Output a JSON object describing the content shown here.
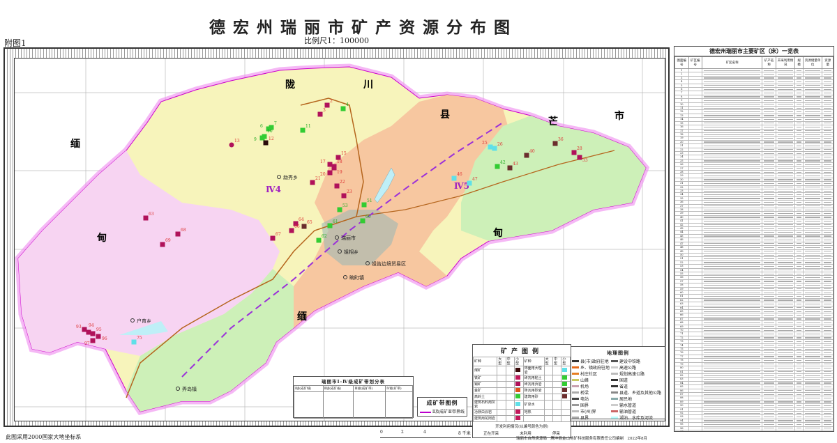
{
  "title": "德宏州瑞丽市矿产资源分布图",
  "scale": "比例尺1：100000",
  "annex": "附图1",
  "footer": {
    "coordinate_system": "此图采用2000国家大地坐标系",
    "producer": "瑞丽市自然资源局　腾冲县金山地矿科技服务有限责任公司编制　2022年8月",
    "scalebar_ticks": [
      "0",
      "2",
      "4",
      "8 千米"
    ]
  },
  "map": {
    "colors": {
      "belt_iv4": "#f7f4bb",
      "west": "#f7d4f2",
      "belt_iv5": "#f7c7a0",
      "east": "#cdf0b8",
      "border_glow": "#ee88ee",
      "urban": "#9fb8b4",
      "water": "#bfeff7",
      "road": "#b5651d",
      "belt_line": "#9b30d9"
    },
    "border_labels": [
      "陇",
      "川",
      "县",
      "芒",
      "市",
      "缅",
      "甸",
      "缅",
      "甸"
    ],
    "place_labels": [
      "勐秀乡",
      "户育乡",
      "瑞丽市",
      "姐相乡",
      "姐告边境贸易区",
      "畹町镇",
      "弄岛镇"
    ],
    "belt_labels": [
      "Ⅳ4",
      "Ⅳ5"
    ],
    "mines": [
      {
        "no": "2",
        "type": "dark-red"
      },
      {
        "no": "3",
        "type": "dark-red"
      },
      {
        "no": "4",
        "type": "green"
      },
      {
        "no": "6",
        "type": "green"
      },
      {
        "no": "7",
        "type": "green"
      },
      {
        "no": "9",
        "type": "green"
      },
      {
        "no": "10",
        "type": "green"
      },
      {
        "no": "11",
        "type": "green"
      },
      {
        "no": "12",
        "type": "black"
      },
      {
        "no": "13",
        "type": "magenta-circle"
      },
      {
        "no": "15",
        "type": "dark-red"
      },
      {
        "no": "17",
        "type": "dark-red"
      },
      {
        "no": "18",
        "type": "dark-red"
      },
      {
        "no": "19",
        "type": "dark-red"
      },
      {
        "no": "20",
        "type": "dark-red"
      },
      {
        "no": "21",
        "type": "dark-red"
      },
      {
        "no": "22",
        "type": "dark-red"
      },
      {
        "no": "23",
        "type": "dark-red"
      },
      {
        "no": "25",
        "type": "cyan"
      },
      {
        "no": "26",
        "type": "cyan"
      },
      {
        "no": "28",
        "type": "dark-red"
      },
      {
        "no": "33",
        "type": "dark-red"
      },
      {
        "no": "36",
        "type": "brown"
      },
      {
        "no": "40",
        "type": "brown"
      },
      {
        "no": "42",
        "type": "green"
      },
      {
        "no": "43",
        "type": "brown"
      },
      {
        "no": "46",
        "type": "cyan"
      },
      {
        "no": "47",
        "type": "cyan"
      },
      {
        "no": "51",
        "type": "green"
      },
      {
        "no": "53",
        "type": "green"
      },
      {
        "no": "60",
        "type": "green"
      },
      {
        "no": "61",
        "type": "green"
      },
      {
        "no": "62",
        "type": "green"
      },
      {
        "no": "63",
        "type": "dark-red"
      },
      {
        "no": "64",
        "type": "dark-red"
      },
      {
        "no": "65",
        "type": "brown"
      },
      {
        "no": "66",
        "type": "dark-red"
      },
      {
        "no": "67",
        "type": "dark-red"
      },
      {
        "no": "68",
        "type": "dark-red"
      },
      {
        "no": "69",
        "type": "dark-red"
      },
      {
        "no": "75",
        "type": "cyan"
      },
      {
        "no": "93",
        "type": "dark-red"
      },
      {
        "no": "94",
        "type": "dark-red"
      },
      {
        "no": "95",
        "type": "dark-red"
      },
      {
        "no": "96",
        "type": "dark-red"
      },
      {
        "no": "97",
        "type": "dark-red"
      }
    ]
  },
  "mineral_legend": {
    "title": "矿产图例",
    "headers": [
      "矿种",
      "大型",
      "中型",
      "小型",
      "矿种",
      "大型",
      "中型",
      "小型"
    ],
    "rows": [
      {
        "left": "煤矿",
        "lc": "#3a0a0a",
        "right": "饰面用大理岩",
        "rc": "#5fe0e8"
      },
      {
        "left": "铁矿",
        "lc": "#c2185b",
        "right": "砖瓦用粘土",
        "rc": "#33cc33"
      },
      {
        "left": "锡矿",
        "lc": "#b0125a",
        "right": "砖瓦用页岩",
        "rc": "#33cc33"
      },
      {
        "left": "金矿",
        "lc": "#e0541a",
        "right": "砖瓦用砂岩",
        "rc": "#6b2d2d"
      },
      {
        "left": "高岭土",
        "lc": "#33cc33",
        "right": "建筑用砂",
        "rc": "#6b2d2d"
      },
      {
        "left": "建筑石料用灰岩",
        "lc": "#5fe0e8",
        "right": "矿泉水",
        "rc": ""
      },
      {
        "left": "冶镁白云岩",
        "lc": "#c2185b",
        "right": "地热",
        "rc": ""
      },
      {
        "left": "建筑用花岗岩",
        "lc": "#c2185b",
        "right": "",
        "rc": ""
      }
    ],
    "status_title": "开发利用情况(以编号颜色为例)",
    "status": [
      "正在开采",
      "未利用",
      "停采"
    ]
  },
  "geo_legend": {
    "title": "地理图例",
    "items": [
      "县(市)政府驻地",
      "建设中铁路",
      "乡、镇政府驻地",
      "高速公路",
      "村庄社区",
      "规划高速公路",
      "山峰",
      "国道",
      "机场",
      "省道",
      "桥梁",
      "县道、乡道及其他公路",
      "电站",
      "居民地",
      "国界",
      "输水管道",
      "市(州)界",
      "输油管道",
      "县界",
      "湖泊、水库及河流"
    ]
  },
  "belt_legend": {
    "title": "成矿带图例",
    "item": "Ⅱ及成矿亚带界线"
  },
  "belt_table": {
    "title": "瑞丽市Ⅰ-Ⅳ级成矿带划分表",
    "headers": [
      "Ⅰ级(成矿域)",
      "Ⅱ级(成矿省)",
      "Ⅲ级(成矿带)",
      "Ⅳ级(矿带)"
    ]
  },
  "right_table": {
    "title": "德宏州瑞丽市主要矿区（床）一览表",
    "headers": [
      "图面编号",
      "矿区编号",
      "矿区名称",
      "矿产名称",
      "开采利用情况",
      "规模",
      "资源储量单位",
      "资源量"
    ],
    "row_count_label": [
      "1",
      "2",
      "3",
      "4",
      "5",
      "6",
      "7",
      "8",
      "9",
      "10",
      "11",
      "12",
      "13",
      "14",
      "15",
      "16",
      "17",
      "18",
      "19",
      "20",
      "21",
      "22",
      "23",
      "24",
      "25",
      "26",
      "27",
      "28",
      "29",
      "30",
      "31",
      "32",
      "33",
      "34",
      "35",
      "36",
      "37",
      "38",
      "39",
      "40",
      "41",
      "42",
      "43",
      "44",
      "45",
      "46",
      "47",
      "48",
      "49",
      "50",
      "51",
      "52",
      "53",
      "54",
      "55",
      "56",
      "57",
      "58",
      "59",
      "60",
      "61",
      "62",
      "63",
      "64",
      "65",
      "66",
      "67",
      "68",
      "69",
      "70",
      "71",
      "72",
      "73",
      "74",
      "75",
      "76",
      "77",
      "78",
      "79",
      "80",
      "81",
      "82",
      "83",
      "84",
      "85",
      "86",
      "87",
      "88",
      "89",
      "90",
      "91",
      "92",
      "93",
      "94",
      "95",
      "96",
      "97"
    ]
  }
}
